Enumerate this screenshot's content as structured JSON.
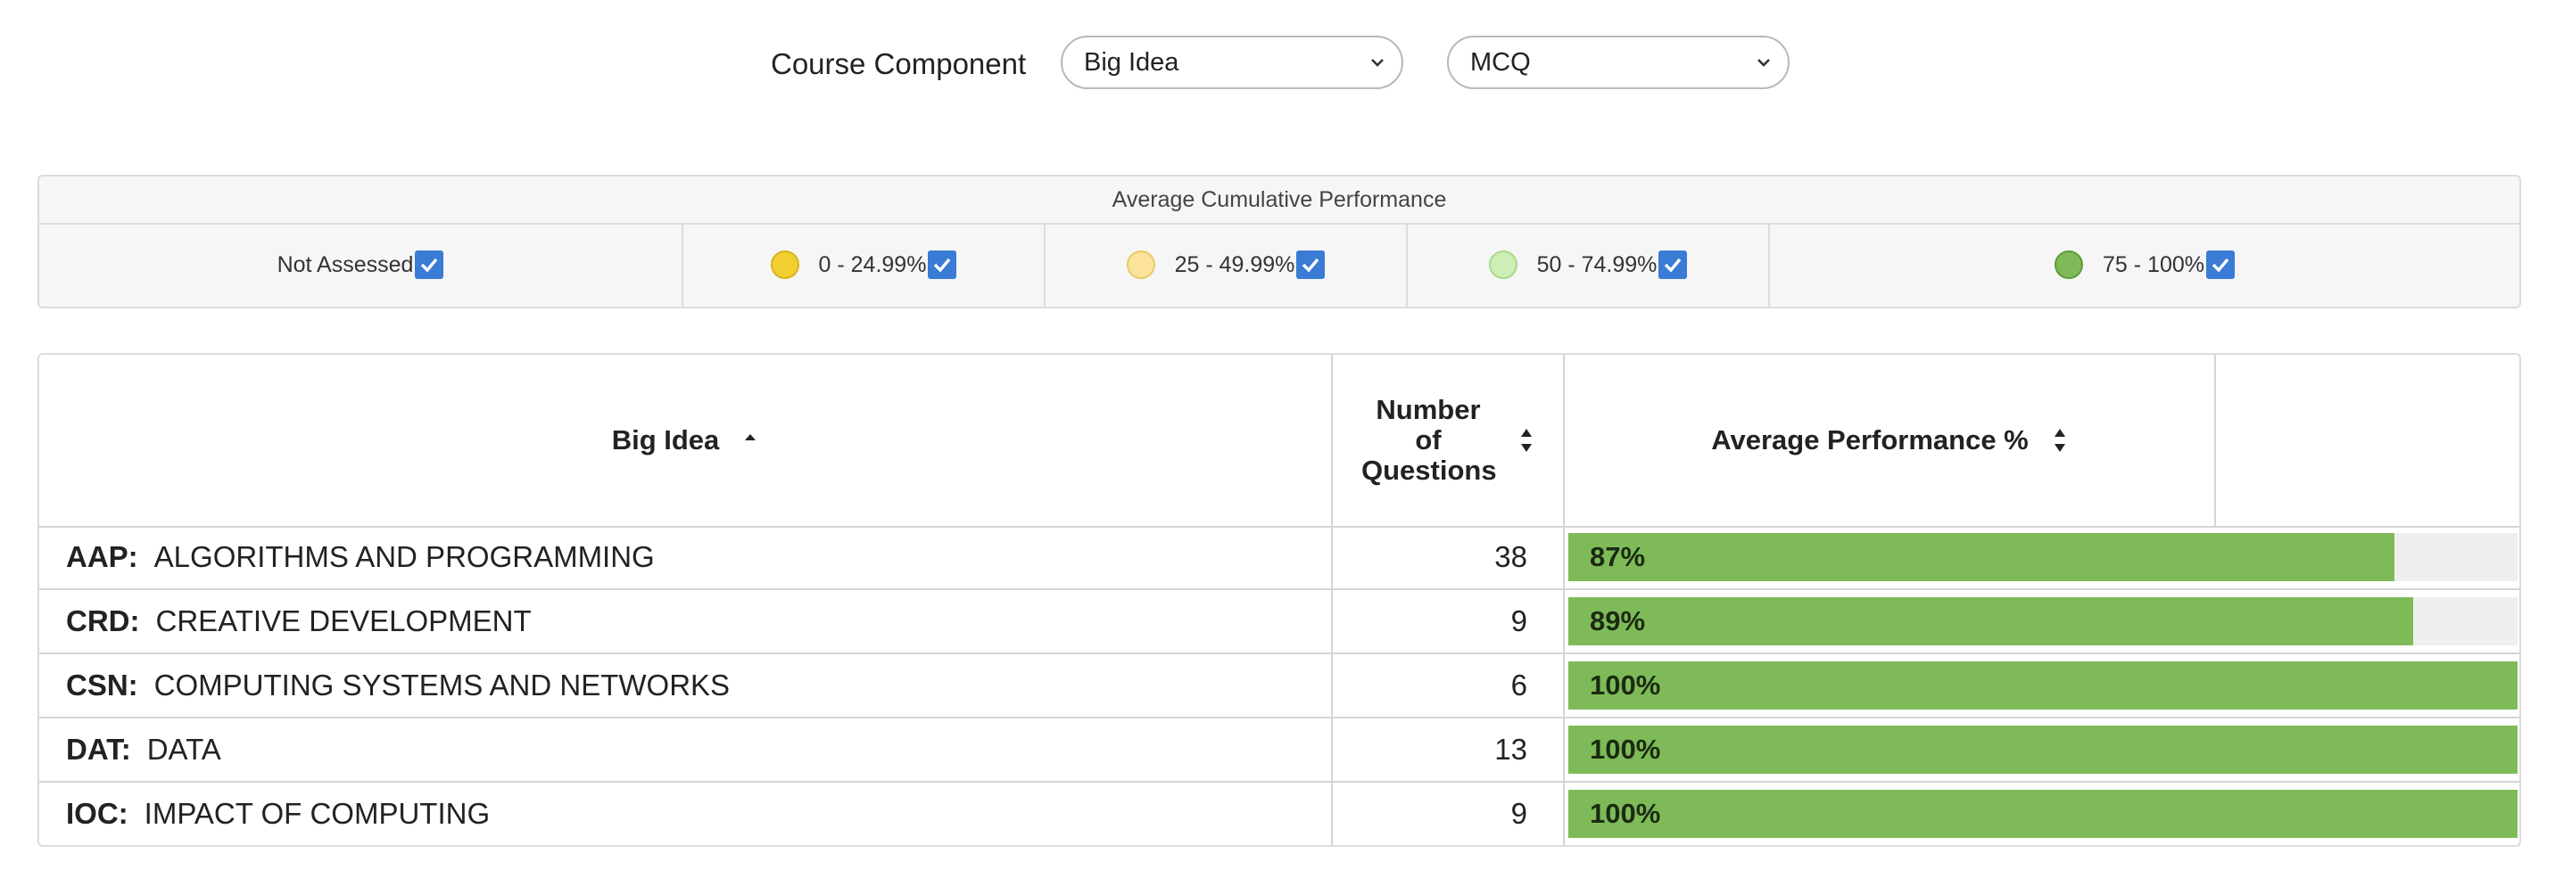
{
  "filters": {
    "label": "Course Component",
    "select_1": {
      "value": "Big Idea"
    },
    "select_2": {
      "value": "MCQ"
    }
  },
  "legend": {
    "title": "Average Cumulative Performance",
    "items": [
      {
        "label": "Not Assessed",
        "color": null,
        "checked": true
      },
      {
        "label": "0 - 24.99%",
        "color": "#f1cf30",
        "checked": true
      },
      {
        "label": "25 - 49.99%",
        "color": "#fbe39a",
        "checked": true
      },
      {
        "label": "50 - 74.99%",
        "color": "#cdeeb4",
        "checked": true
      },
      {
        "label": "75 - 100%",
        "color": "#7ebb58",
        "checked": true
      }
    ]
  },
  "table": {
    "headers": {
      "big_idea": "Big Idea",
      "num_questions": "Number of Questions",
      "avg_performance": "Average Performance %"
    },
    "rows": [
      {
        "code": "AAP:",
        "name": "ALGORITHMS AND PROGRAMMING",
        "questions": "38",
        "performance": "87%",
        "fraction": 0.87
      },
      {
        "code": "CRD:",
        "name": "CREATIVE DEVELOPMENT",
        "questions": "9",
        "performance": "89%",
        "fraction": 0.89
      },
      {
        "code": "CSN:",
        "name": "COMPUTING SYSTEMS AND NETWORKS",
        "questions": "6",
        "performance": "100%",
        "fraction": 1.0
      },
      {
        "code": "DAT:",
        "name": "DATA",
        "questions": "13",
        "performance": "100%",
        "fraction": 1.0
      },
      {
        "code": "IOC:",
        "name": "IMPACT OF COMPUTING",
        "questions": "9",
        "performance": "100%",
        "fraction": 1.0
      }
    ]
  },
  "colors": {
    "bar_fill": "#7ebb58",
    "bar_track": "#efefef",
    "checkbox": "#3a7bd5"
  }
}
